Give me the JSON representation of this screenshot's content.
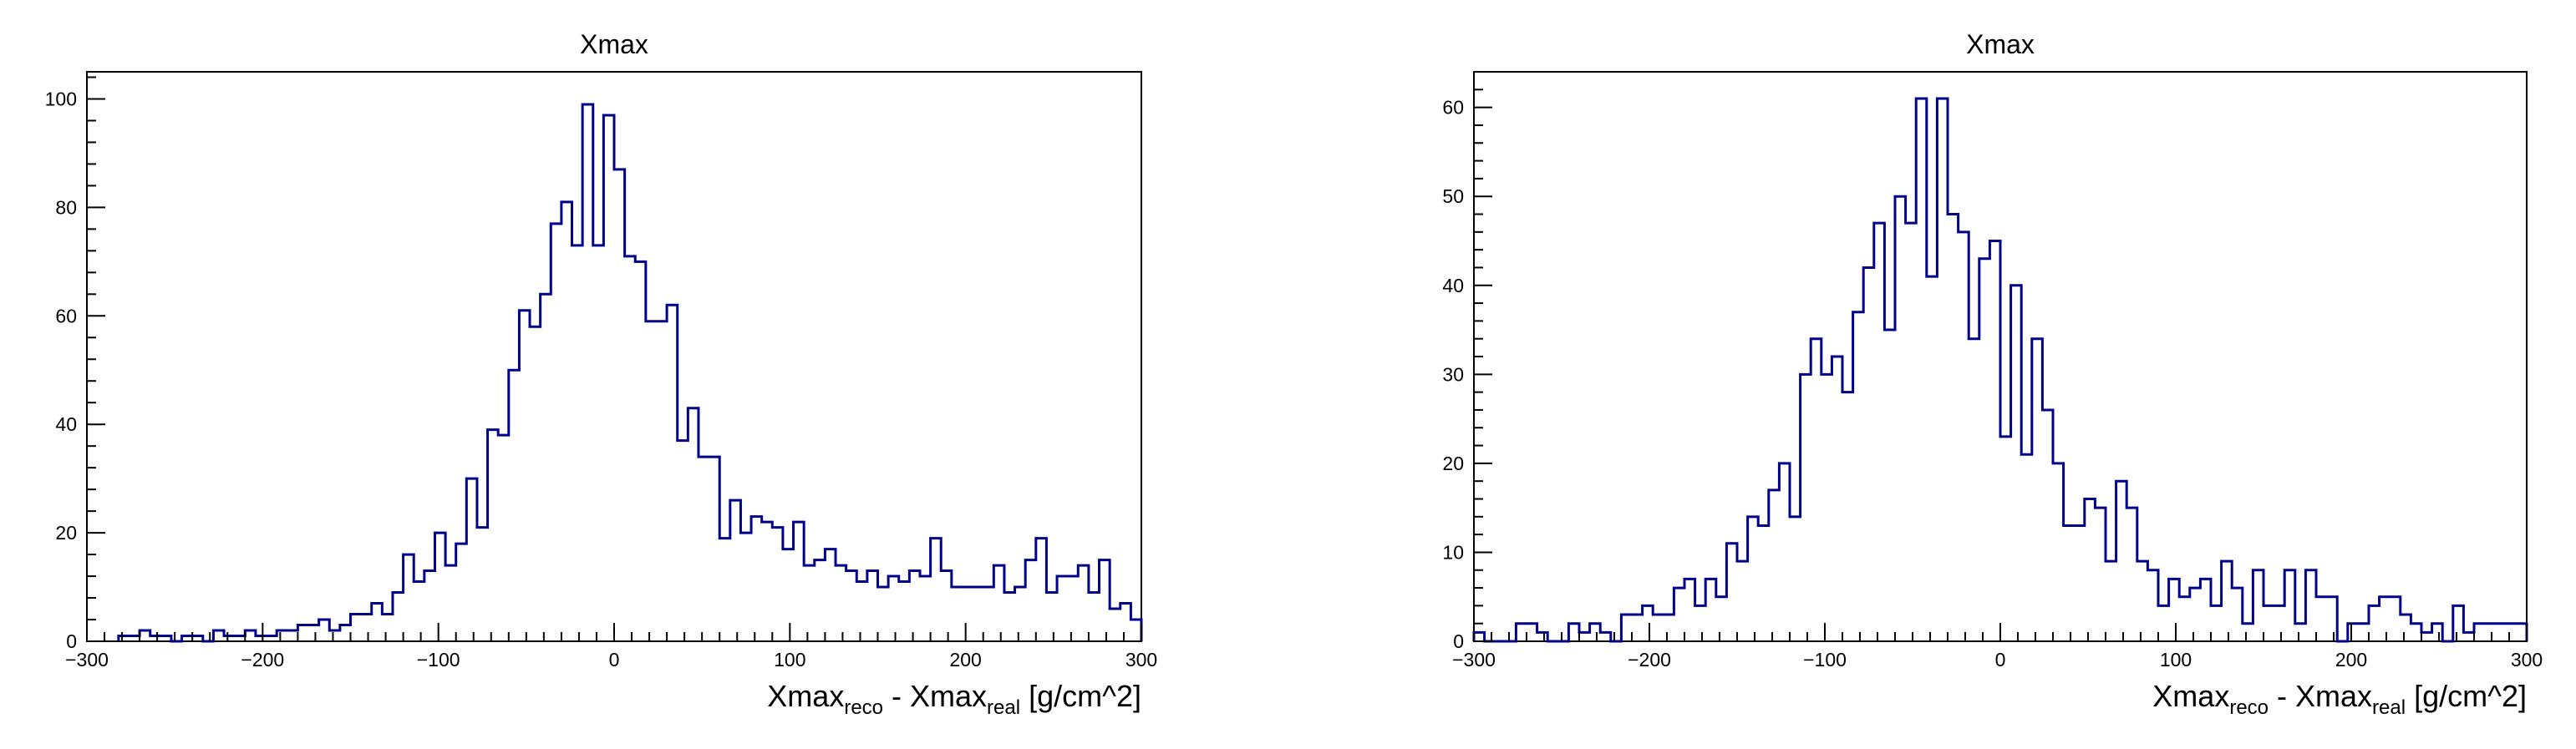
{
  "chart_data": [
    {
      "type": "histogram",
      "title": "Xmax",
      "xlabel": {
        "main": "Xmax",
        "sub1": "reco",
        "mid": " - Xmax",
        "sub2": "real",
        "tail": " [g/cm^2]"
      },
      "ylabel": "",
      "xlim": [
        -300,
        300
      ],
      "ylim": [
        0,
        105
      ],
      "bin_width": 6,
      "x_ticks": [
        -300,
        -200,
        -100,
        0,
        100,
        200,
        300
      ],
      "x_tick_labels": [
        "−300",
        "−200",
        "−100",
        "0",
        "100",
        "200",
        "300"
      ],
      "y_ticks": [
        0,
        20,
        40,
        60,
        80,
        100
      ],
      "y_tick_labels": [
        "0",
        "20",
        "40",
        "60",
        "80",
        "100"
      ],
      "line_color": "#00008b",
      "bins": [
        [
          -282,
          1
        ],
        [
          -276,
          1
        ],
        [
          -270,
          2
        ],
        [
          -264,
          1
        ],
        [
          -258,
          1
        ],
        [
          -252,
          0
        ],
        [
          -246,
          1
        ],
        [
          -240,
          1
        ],
        [
          -234,
          0
        ],
        [
          -228,
          2
        ],
        [
          -222,
          1
        ],
        [
          -216,
          1
        ],
        [
          -210,
          2
        ],
        [
          -204,
          1
        ],
        [
          -198,
          1
        ],
        [
          -192,
          2
        ],
        [
          -186,
          2
        ],
        [
          -180,
          3
        ],
        [
          -174,
          3
        ],
        [
          -168,
          4
        ],
        [
          -162,
          2
        ],
        [
          -156,
          3
        ],
        [
          -150,
          5
        ],
        [
          -144,
          5
        ],
        [
          -138,
          7
        ],
        [
          -132,
          5
        ],
        [
          -126,
          9
        ],
        [
          -120,
          16
        ],
        [
          -114,
          11
        ],
        [
          -108,
          13
        ],
        [
          -102,
          20
        ],
        [
          -96,
          14
        ],
        [
          -90,
          18
        ],
        [
          -84,
          30
        ],
        [
          -78,
          21
        ],
        [
          -72,
          39
        ],
        [
          -66,
          38
        ],
        [
          -60,
          50
        ],
        [
          -54,
          61
        ],
        [
          -48,
          58
        ],
        [
          -42,
          64
        ],
        [
          -36,
          77
        ],
        [
          -30,
          81
        ],
        [
          -24,
          73
        ],
        [
          -18,
          99
        ],
        [
          -12,
          73
        ],
        [
          -6,
          97
        ],
        [
          0,
          87
        ],
        [
          6,
          71
        ],
        [
          12,
          70
        ],
        [
          18,
          59
        ],
        [
          24,
          59
        ],
        [
          30,
          62
        ],
        [
          36,
          37
        ],
        [
          42,
          43
        ],
        [
          48,
          34
        ],
        [
          54,
          34
        ],
        [
          60,
          19
        ],
        [
          66,
          26
        ],
        [
          72,
          20
        ],
        [
          78,
          23
        ],
        [
          84,
          22
        ],
        [
          90,
          21
        ],
        [
          96,
          17
        ],
        [
          102,
          22
        ],
        [
          108,
          14
        ],
        [
          114,
          15
        ],
        [
          120,
          17
        ],
        [
          126,
          14
        ],
        [
          132,
          13
        ],
        [
          138,
          11
        ],
        [
          144,
          13
        ],
        [
          150,
          10
        ],
        [
          156,
          12
        ],
        [
          162,
          11
        ],
        [
          168,
          13
        ],
        [
          174,
          12
        ],
        [
          180,
          19
        ],
        [
          186,
          13
        ],
        [
          192,
          10
        ],
        [
          198,
          10
        ],
        [
          204,
          10
        ],
        [
          210,
          10
        ],
        [
          216,
          14
        ],
        [
          222,
          9
        ],
        [
          228,
          10
        ],
        [
          234,
          15
        ],
        [
          240,
          19
        ],
        [
          246,
          9
        ],
        [
          252,
          12
        ],
        [
          258,
          12
        ],
        [
          264,
          14
        ],
        [
          270,
          9
        ],
        [
          276,
          15
        ],
        [
          282,
          6
        ],
        [
          288,
          7
        ],
        [
          294,
          4
        ]
      ]
    },
    {
      "type": "histogram",
      "title": "Xmax",
      "xlabel": {
        "main": "Xmax",
        "sub1": "reco",
        "mid": " - Xmax",
        "sub2": "real",
        "tail": " [g/cm^2]"
      },
      "ylabel": "",
      "xlim": [
        -300,
        300
      ],
      "ylim": [
        0,
        64
      ],
      "bin_width": 6,
      "x_ticks": [
        -300,
        -200,
        -100,
        0,
        100,
        200,
        300
      ],
      "x_tick_labels": [
        "−300",
        "−200",
        "−100",
        "0",
        "100",
        "200",
        "300"
      ],
      "y_ticks": [
        0,
        10,
        20,
        30,
        40,
        50,
        60
      ],
      "y_tick_labels": [
        "0",
        "10",
        "20",
        "30",
        "40",
        "50",
        "60"
      ],
      "line_color": "#00008b",
      "bins": [
        [
          -300,
          1
        ],
        [
          -294,
          0
        ],
        [
          -288,
          0
        ],
        [
          -282,
          0
        ],
        [
          -276,
          2
        ],
        [
          -270,
          2
        ],
        [
          -264,
          1
        ],
        [
          -258,
          0
        ],
        [
          -252,
          0
        ],
        [
          -246,
          2
        ],
        [
          -240,
          1
        ],
        [
          -234,
          2
        ],
        [
          -228,
          1
        ],
        [
          -222,
          0
        ],
        [
          -216,
          3
        ],
        [
          -210,
          3
        ],
        [
          -204,
          4
        ],
        [
          -198,
          3
        ],
        [
          -192,
          3
        ],
        [
          -186,
          6
        ],
        [
          -180,
          7
        ],
        [
          -174,
          4
        ],
        [
          -168,
          7
        ],
        [
          -162,
          5
        ],
        [
          -156,
          11
        ],
        [
          -150,
          9
        ],
        [
          -144,
          14
        ],
        [
          -138,
          13
        ],
        [
          -132,
          17
        ],
        [
          -126,
          20
        ],
        [
          -120,
          14
        ],
        [
          -114,
          30
        ],
        [
          -108,
          34
        ],
        [
          -102,
          30
        ],
        [
          -96,
          32
        ],
        [
          -90,
          28
        ],
        [
          -84,
          37
        ],
        [
          -78,
          42
        ],
        [
          -72,
          47
        ],
        [
          -66,
          35
        ],
        [
          -60,
          50
        ],
        [
          -54,
          47
        ],
        [
          -48,
          61
        ],
        [
          -42,
          41
        ],
        [
          -36,
          61
        ],
        [
          -30,
          48
        ],
        [
          -24,
          46
        ],
        [
          -18,
          34
        ],
        [
          -12,
          43
        ],
        [
          -6,
          45
        ],
        [
          0,
          23
        ],
        [
          6,
          40
        ],
        [
          12,
          21
        ],
        [
          18,
          34
        ],
        [
          24,
          26
        ],
        [
          30,
          20
        ],
        [
          36,
          13
        ],
        [
          42,
          13
        ],
        [
          48,
          16
        ],
        [
          54,
          15
        ],
        [
          60,
          9
        ],
        [
          66,
          18
        ],
        [
          72,
          15
        ],
        [
          78,
          9
        ],
        [
          84,
          8
        ],
        [
          90,
          4
        ],
        [
          96,
          7
        ],
        [
          102,
          5
        ],
        [
          108,
          6
        ],
        [
          114,
          7
        ],
        [
          120,
          4
        ],
        [
          126,
          9
        ],
        [
          132,
          6
        ],
        [
          138,
          2
        ],
        [
          144,
          8
        ],
        [
          150,
          4
        ],
        [
          156,
          4
        ],
        [
          162,
          8
        ],
        [
          168,
          2
        ],
        [
          174,
          8
        ],
        [
          180,
          5
        ],
        [
          186,
          5
        ],
        [
          192,
          0
        ],
        [
          198,
          2
        ],
        [
          204,
          2
        ],
        [
          210,
          4
        ],
        [
          216,
          5
        ],
        [
          222,
          5
        ],
        [
          228,
          3
        ],
        [
          234,
          2
        ],
        [
          240,
          1
        ],
        [
          246,
          2
        ],
        [
          252,
          0
        ],
        [
          258,
          4
        ],
        [
          264,
          1
        ],
        [
          270,
          2
        ],
        [
          276,
          2
        ],
        [
          282,
          2
        ],
        [
          288,
          2
        ],
        [
          294,
          2
        ]
      ]
    }
  ]
}
